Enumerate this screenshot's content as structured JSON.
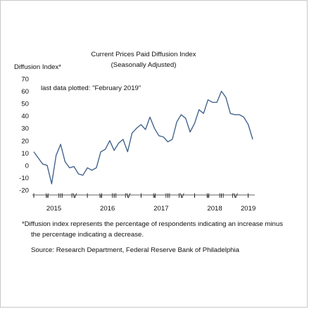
{
  "chart_data": {
    "type": "line",
    "title": "Current Prices Paid Diffusion Index",
    "subtitle": "(Seasonally Adjusted)",
    "ylabel": "Diffusion Index*",
    "xlabel": "",
    "ylim": [
      -20,
      70
    ],
    "yticks": [
      70,
      60,
      50,
      40,
      30,
      20,
      10,
      0,
      -10,
      -20
    ],
    "grid": false,
    "legend": "none",
    "annotation": "last data plotted: \"February 2019\"",
    "line_color": "#44658d",
    "quarter_ticks": [
      {
        "label": "I",
        "month_index": 0
      },
      {
        "label": "II",
        "month_index": 3
      },
      {
        "label": "III",
        "month_index": 6
      },
      {
        "label": "IV",
        "month_index": 9
      },
      {
        "label": "I",
        "month_index": 12
      },
      {
        "label": "II",
        "month_index": 15
      },
      {
        "label": "III",
        "month_index": 18
      },
      {
        "label": "IV",
        "month_index": 21
      },
      {
        "label": "I",
        "month_index": 24
      },
      {
        "label": "II",
        "month_index": 27
      },
      {
        "label": "III",
        "month_index": 30
      },
      {
        "label": "IV",
        "month_index": 33
      },
      {
        "label": "I",
        "month_index": 36
      },
      {
        "label": "II",
        "month_index": 39
      },
      {
        "label": "III",
        "month_index": 42
      },
      {
        "label": "IV",
        "month_index": 45
      },
      {
        "label": "I",
        "month_index": 48
      }
    ],
    "year_labels": [
      {
        "label": "2015",
        "month_index": 4.5
      },
      {
        "label": "2016",
        "month_index": 16.5
      },
      {
        "label": "2017",
        "month_index": 28.5
      },
      {
        "label": "2018",
        "month_index": 40.5
      },
      {
        "label": "2019",
        "month_index": 48
      }
    ],
    "x": [
      "2015-01",
      "2015-02",
      "2015-03",
      "2015-04",
      "2015-05",
      "2015-06",
      "2015-07",
      "2015-08",
      "2015-09",
      "2015-10",
      "2015-11",
      "2015-12",
      "2016-01",
      "2016-02",
      "2016-03",
      "2016-04",
      "2016-05",
      "2016-06",
      "2016-07",
      "2016-08",
      "2016-09",
      "2016-10",
      "2016-11",
      "2016-12",
      "2017-01",
      "2017-02",
      "2017-03",
      "2017-04",
      "2017-05",
      "2017-06",
      "2017-07",
      "2017-08",
      "2017-09",
      "2017-10",
      "2017-11",
      "2017-12",
      "2018-01",
      "2018-02",
      "2018-03",
      "2018-04",
      "2018-05",
      "2018-06",
      "2018-07",
      "2018-08",
      "2018-09",
      "2018-10",
      "2018-11",
      "2018-12",
      "2019-01",
      "2019-02"
    ],
    "values": [
      11,
      6,
      1,
      0,
      -15,
      8,
      17,
      3,
      -2,
      -1,
      -7,
      -8,
      -2,
      -4,
      -2,
      11,
      13,
      20,
      12,
      18,
      21,
      11,
      26,
      30,
      33,
      29,
      39,
      30,
      24,
      23,
      19,
      21,
      35,
      41,
      38,
      27,
      34,
      45,
      42,
      53,
      51,
      51,
      60,
      55,
      42,
      41,
      41,
      39,
      33,
      21
    ]
  },
  "footnote_line1": "*Diffusion index represents the percentage of respondents indicating an increase minus",
  "footnote_line2": "the percentage indicating a decrease.",
  "source": "Source: Research Department, Federal Reserve Bank of Philadelphia"
}
